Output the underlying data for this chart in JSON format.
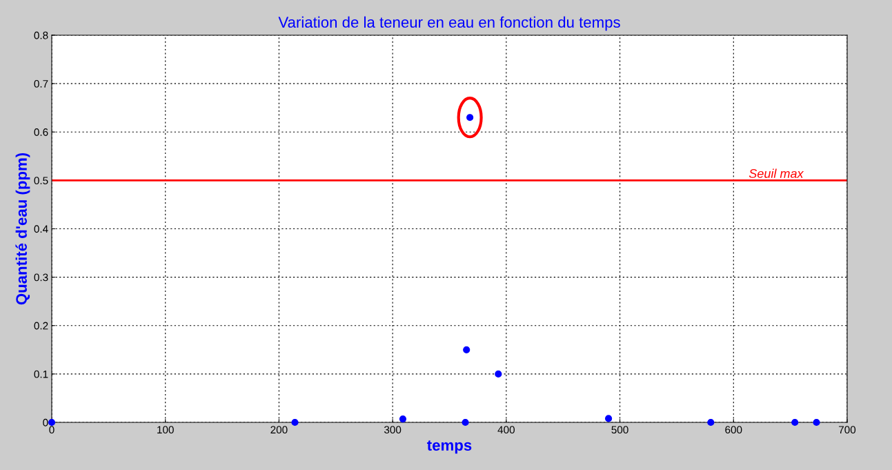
{
  "chart_data": {
    "type": "scatter",
    "title": "Variation de la teneur en eau en fonction du temps",
    "xlabel": "temps",
    "ylabel": "Quantité d'eau (ppm)",
    "x": [
      0,
      214,
      309,
      364,
      365,
      368,
      393,
      490,
      580,
      654,
      673
    ],
    "series": [
      {
        "color": "#0000ff",
        "values": [
          0,
          0,
          0.007,
          0,
          0.15,
          0.63,
          0.1,
          0.008,
          0,
          0,
          0
        ]
      }
    ],
    "xlim": [
      0,
      700
    ],
    "xticks": [
      0,
      100,
      200,
      300,
      400,
      500,
      600,
      700
    ],
    "ylim": [
      0,
      0.8
    ],
    "yticks": [
      0,
      0.1,
      0.2,
      0.3,
      0.4,
      0.5,
      0.6,
      0.7,
      0.8
    ],
    "ref_lines": [
      {
        "axis": "y",
        "value": 0.5,
        "label": "Seuil max",
        "color": "#ff0000",
        "line_style": "solid"
      }
    ],
    "grid": true,
    "marker": "circle",
    "legend": false
  }
}
